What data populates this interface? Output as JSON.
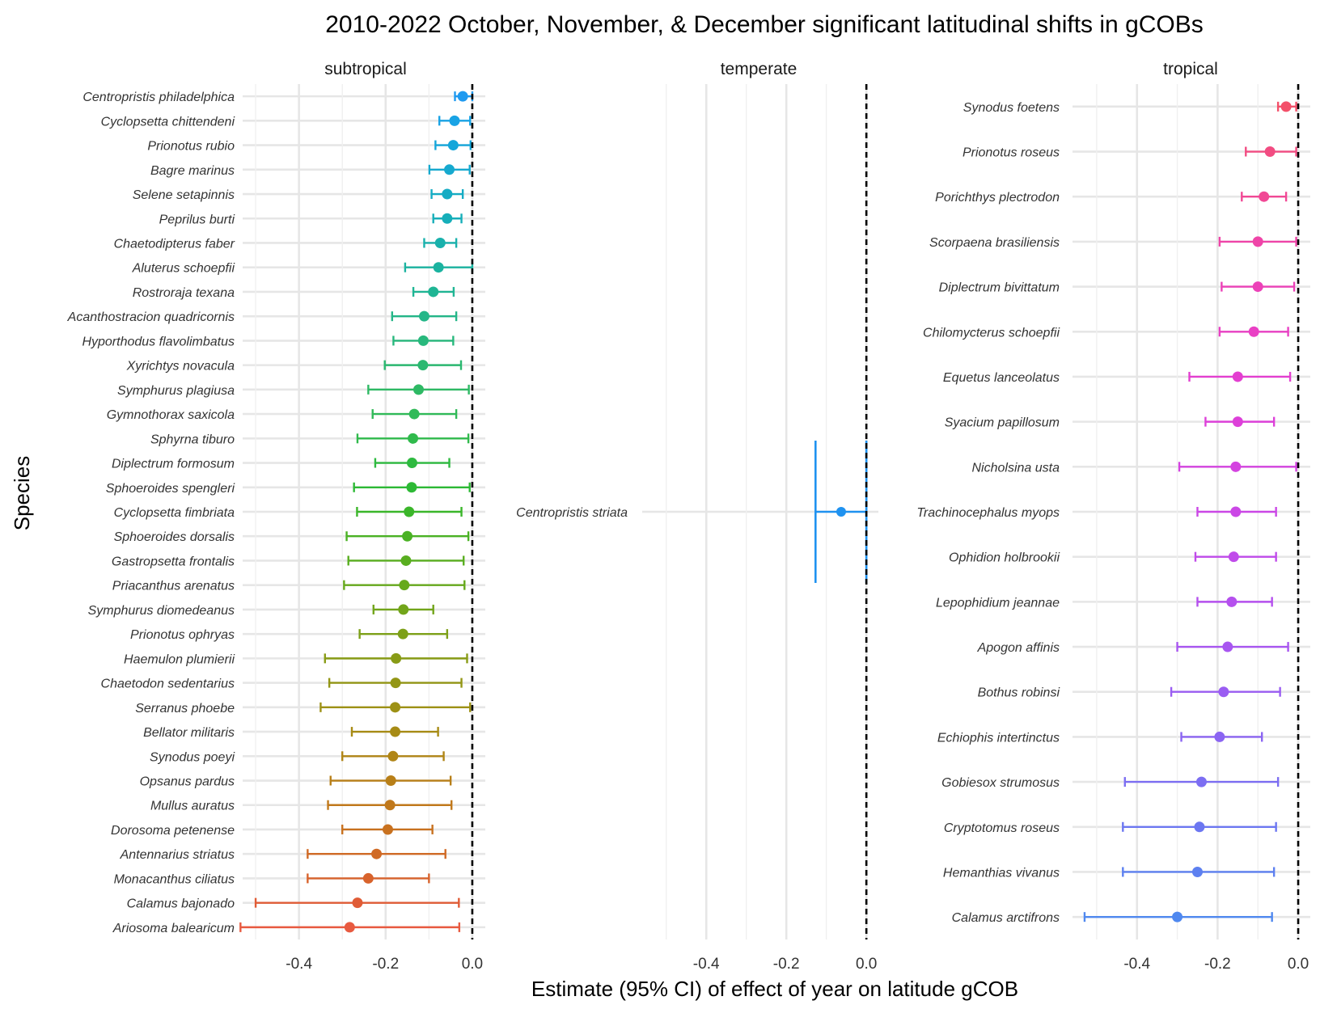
{
  "chart_data": {
    "type": "forest",
    "title": "2010-2022 October, November, & December significant latitudinal shifts in gCOBs",
    "xlabel": "Estimate (95% CI) of effect of year on latitude gCOB",
    "ylabel": "Species",
    "reference_line": 0.0,
    "panels": [
      {
        "name": "subtropical",
        "xlim": [
          -0.53,
          0.03
        ],
        "xticks": [
          "-0.4",
          "-0.2",
          "0.0"
        ],
        "xtick_values": [
          -0.4,
          -0.2,
          0.0
        ],
        "rows": [
          {
            "species": "Centropristis philadelphica",
            "estimate": -0.022,
            "lower": -0.04,
            "upper": 0.0,
            "color": "#1F9AF0"
          },
          {
            "species": "Cyclopsetta chittendeni",
            "estimate": -0.041,
            "lower": -0.076,
            "upper": -0.005,
            "color": "#19A3E5"
          },
          {
            "species": "Prionotus rubio",
            "estimate": -0.044,
            "lower": -0.085,
            "upper": -0.004,
            "color": "#14A6DA"
          },
          {
            "species": "Bagre marinus",
            "estimate": -0.053,
            "lower": -0.099,
            "upper": -0.006,
            "color": "#16A9CF"
          },
          {
            "species": "Selene setapinnis",
            "estimate": -0.058,
            "lower": -0.094,
            "upper": -0.022,
            "color": "#15ACC4"
          },
          {
            "species": "Peprilus burti",
            "estimate": -0.058,
            "lower": -0.09,
            "upper": -0.025,
            "color": "#16AEB9"
          },
          {
            "species": "Chaetodipterus faber",
            "estimate": -0.074,
            "lower": -0.111,
            "upper": -0.037,
            "color": "#19B1AC"
          },
          {
            "species": "Aluterus schoepfii",
            "estimate": -0.078,
            "lower": -0.155,
            "upper": 0.0,
            "color": "#1BB3A0"
          },
          {
            "species": "Rostroraja texana",
            "estimate": -0.09,
            "lower": -0.136,
            "upper": -0.043,
            "color": "#1FB594"
          },
          {
            "species": "Acanthostracion quadricornis",
            "estimate": -0.111,
            "lower": -0.185,
            "upper": -0.037,
            "color": "#24B688"
          },
          {
            "species": "Hyporthodus flavolimbatus",
            "estimate": -0.113,
            "lower": -0.182,
            "upper": -0.044,
            "color": "#27B87C"
          },
          {
            "species": "Xyrichtys novacula",
            "estimate": -0.114,
            "lower": -0.202,
            "upper": -0.026,
            "color": "#2BB870"
          },
          {
            "species": "Symphurus plagiusa",
            "estimate": -0.124,
            "lower": -0.24,
            "upper": -0.008,
            "color": "#2EB964"
          },
          {
            "species": "Gymnothorax saxicola",
            "estimate": -0.134,
            "lower": -0.23,
            "upper": -0.037,
            "color": "#30BA58"
          },
          {
            "species": "Sphyrna tiburo",
            "estimate": -0.137,
            "lower": -0.265,
            "upper": -0.009,
            "color": "#30BA4C"
          },
          {
            "species": "Diplectrum formosum",
            "estimate": -0.139,
            "lower": -0.224,
            "upper": -0.053,
            "color": "#2EBA40"
          },
          {
            "species": "Sphoeroides spengleri",
            "estimate": -0.14,
            "lower": -0.273,
            "upper": -0.006,
            "color": "#2DB935"
          },
          {
            "species": "Cyclopsetta fimbriata",
            "estimate": -0.146,
            "lower": -0.266,
            "upper": -0.025,
            "color": "#3BB62A"
          },
          {
            "species": "Sphoeroides dorsalis",
            "estimate": -0.15,
            "lower": -0.29,
            "upper": -0.009,
            "color": "#4AB224"
          },
          {
            "species": "Gastropsetta frontalis",
            "estimate": -0.153,
            "lower": -0.286,
            "upper": -0.02,
            "color": "#59AE20"
          },
          {
            "species": "Priacanthus arenatus",
            "estimate": -0.157,
            "lower": -0.296,
            "upper": -0.018,
            "color": "#66A91C"
          },
          {
            "species": "Symphurus diomedeanus",
            "estimate": -0.159,
            "lower": -0.228,
            "upper": -0.09,
            "color": "#72A51A"
          },
          {
            "species": "Prionotus ophryas",
            "estimate": -0.16,
            "lower": -0.26,
            "upper": -0.058,
            "color": "#7DA018"
          },
          {
            "species": "Haemulon plumierii",
            "estimate": -0.176,
            "lower": -0.34,
            "upper": -0.012,
            "color": "#889B16"
          },
          {
            "species": "Chaetodon sedentarius",
            "estimate": -0.177,
            "lower": -0.33,
            "upper": -0.025,
            "color": "#939615"
          },
          {
            "species": "Serranus phoebe",
            "estimate": -0.178,
            "lower": -0.35,
            "upper": -0.005,
            "color": "#9D9115"
          },
          {
            "species": "Bellator militaris",
            "estimate": -0.178,
            "lower": -0.278,
            "upper": -0.079,
            "color": "#A78B15"
          },
          {
            "species": "Synodus poeyi",
            "estimate": -0.183,
            "lower": -0.3,
            "upper": -0.066,
            "color": "#B08516"
          },
          {
            "species": "Opsanus pardus",
            "estimate": -0.188,
            "lower": -0.327,
            "upper": -0.05,
            "color": "#B87F18"
          },
          {
            "species": "Mullus auratus",
            "estimate": -0.19,
            "lower": -0.333,
            "upper": -0.048,
            "color": "#C0781B"
          },
          {
            "species": "Dorosoma petenense",
            "estimate": -0.195,
            "lower": -0.3,
            "upper": -0.092,
            "color": "#C8711F"
          },
          {
            "species": "Antennarius striatus",
            "estimate": -0.221,
            "lower": -0.38,
            "upper": -0.062,
            "color": "#D06A25"
          },
          {
            "species": "Monacanthus ciliatus",
            "estimate": -0.24,
            "lower": -0.38,
            "upper": -0.1,
            "color": "#D8632C"
          },
          {
            "species": "Calamus bajonado",
            "estimate": -0.265,
            "lower": -0.5,
            "upper": -0.031,
            "color": "#E05C36"
          },
          {
            "species": "Ariosoma balearicum",
            "estimate": -0.283,
            "lower": -0.535,
            "upper": -0.03,
            "color": "#E85A40"
          }
        ]
      },
      {
        "name": "temperate",
        "xlim": [
          -0.56,
          0.03
        ],
        "xticks": [
          "-0.4",
          "-0.2",
          "0.0"
        ],
        "xtick_values": [
          -0.4,
          -0.2,
          0.0
        ],
        "rows": [
          {
            "species": "Centropristis striata",
            "estimate": -0.063,
            "lower": -0.127,
            "upper": 0.0,
            "color": "#1F92F0"
          }
        ]
      },
      {
        "name": "tropical",
        "xlim": [
          -0.56,
          0.03
        ],
        "xticks": [
          "-0.4",
          "-0.2",
          "0.0"
        ],
        "xtick_values": [
          -0.4,
          -0.2,
          0.0
        ],
        "rows": [
          {
            "species": "Synodus foetens",
            "estimate": -0.03,
            "lower": -0.05,
            "upper": -0.005,
            "color": "#F3506A"
          },
          {
            "species": "Prionotus roseus",
            "estimate": -0.07,
            "lower": -0.13,
            "upper": -0.005,
            "color": "#F24C82"
          },
          {
            "species": "Porichthys plectrodon",
            "estimate": -0.085,
            "lower": -0.14,
            "upper": -0.03,
            "color": "#F14895"
          },
          {
            "species": "Scorpaena brasiliensis",
            "estimate": -0.1,
            "lower": -0.195,
            "upper": -0.005,
            "color": "#EF45A8"
          },
          {
            "species": "Diplectrum bivittatum",
            "estimate": -0.1,
            "lower": -0.19,
            "upper": -0.01,
            "color": "#EC42B8"
          },
          {
            "species": "Chilomycterus schoepfii",
            "estimate": -0.11,
            "lower": -0.195,
            "upper": -0.025,
            "color": "#E940C4"
          },
          {
            "species": "Equetus lanceolatus",
            "estimate": -0.15,
            "lower": -0.27,
            "upper": -0.02,
            "color": "#E33FD0"
          },
          {
            "species": "Syacium papillosum",
            "estimate": -0.15,
            "lower": -0.23,
            "upper": -0.06,
            "color": "#DD40D9"
          },
          {
            "species": "Nicholsina usta",
            "estimate": -0.155,
            "lower": -0.295,
            "upper": -0.005,
            "color": "#D443E0"
          },
          {
            "species": "Trachinocephalus myops",
            "estimate": -0.155,
            "lower": -0.25,
            "upper": -0.055,
            "color": "#CB47E6"
          },
          {
            "species": "Ophidion holbrookii",
            "estimate": -0.16,
            "lower": -0.255,
            "upper": -0.055,
            "color": "#C04BEA"
          },
          {
            "species": "Lepophidium jeannae",
            "estimate": -0.165,
            "lower": -0.25,
            "upper": -0.065,
            "color": "#B550EE"
          },
          {
            "species": "Apogon affinis",
            "estimate": -0.175,
            "lower": -0.3,
            "upper": -0.025,
            "color": "#A856F0"
          },
          {
            "species": "Bothus robinsi",
            "estimate": -0.185,
            "lower": -0.315,
            "upper": -0.045,
            "color": "#9A5DF2"
          },
          {
            "species": "Echiophis intertinctus",
            "estimate": -0.195,
            "lower": -0.29,
            "upper": -0.09,
            "color": "#8B65F2"
          },
          {
            "species": "Gobiesox strumosus",
            "estimate": -0.24,
            "lower": -0.43,
            "upper": -0.05,
            "color": "#7C6EF2"
          },
          {
            "species": "Cryptotomus roseus",
            "estimate": -0.245,
            "lower": -0.435,
            "upper": -0.055,
            "color": "#6C77F1"
          },
          {
            "species": "Hemanthias vivanus",
            "estimate": -0.25,
            "lower": -0.435,
            "upper": -0.06,
            "color": "#5D80F0"
          },
          {
            "species": "Calamus arctifrons",
            "estimate": -0.3,
            "lower": -0.53,
            "upper": -0.065,
            "color": "#4F88EF"
          }
        ]
      }
    ]
  }
}
